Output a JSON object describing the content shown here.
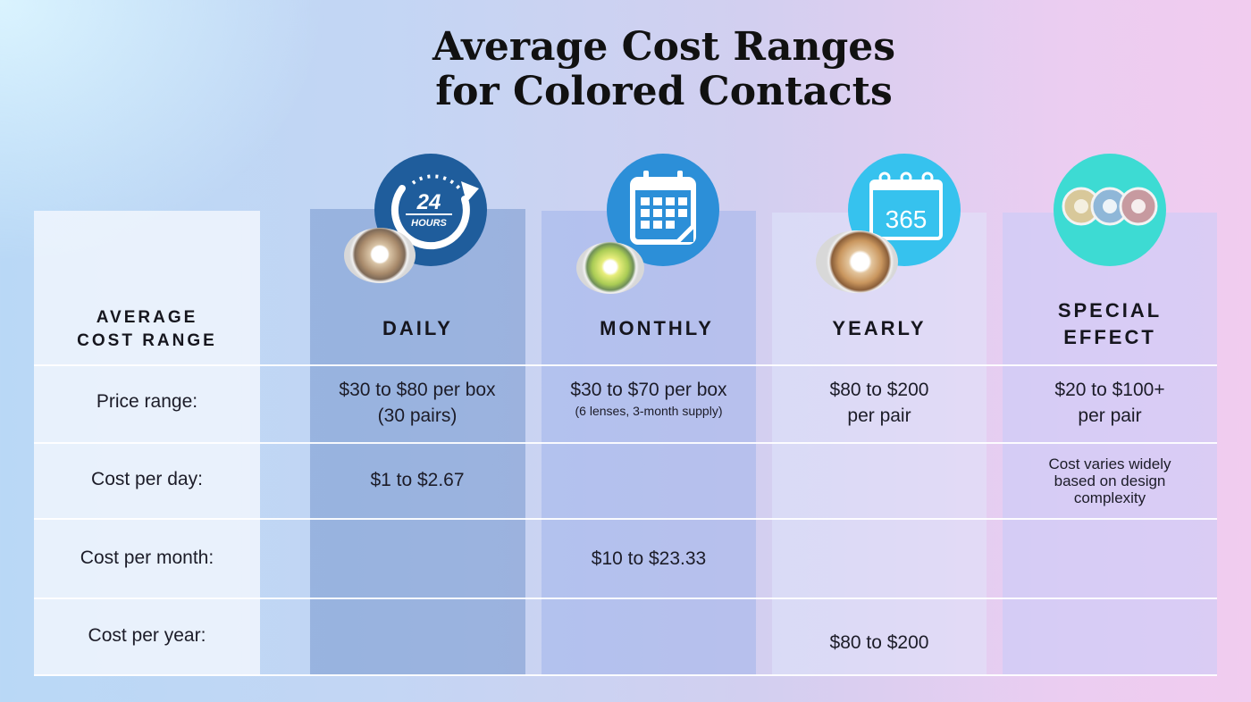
{
  "title_line1": "Average Cost Ranges",
  "title_line2": "for Colored Contacts",
  "chart_data": {
    "type": "table",
    "corner_header": [
      "AVERAGE",
      "COST RANGE"
    ],
    "columns": [
      "DAILY",
      "MONTHLY",
      "YEARLY",
      "SPECIAL",
      "EFFECT"
    ],
    "rows": [
      {
        "label": "Price range:",
        "daily": "$30 to $80 per box",
        "daily_sub": "(30 pairs)",
        "monthly": "$30 to $70 per box",
        "monthly_sub": "(6 lenses, 3-month supply)",
        "yearly": "$80 to $200",
        "yearly_sub": "per pair",
        "special": "$20 to $100+",
        "special_sub": "per pair"
      },
      {
        "label": "Cost per day:",
        "daily": "$1 to $2.67",
        "monthly": "",
        "yearly": "",
        "special": [
          "Cost varies widely",
          "based on design",
          "complexity"
        ]
      },
      {
        "label": "Cost per month:",
        "daily": "",
        "monthly": "$10 to $23.33",
        "yearly": "",
        "special": ""
      },
      {
        "label": "Cost per year:",
        "daily": "",
        "monthly": "",
        "yearly": "$80 to $200",
        "special": ""
      }
    ]
  },
  "icons": {
    "daily_number": "24",
    "daily_text": "HOURS",
    "yearly_number": "365",
    "daily": "24-hours-clock-icon",
    "monthly": "calendar-icon",
    "yearly": "365-calendar-icon",
    "special": "colored-lenses-icon"
  },
  "colors": {
    "daily_icon": "#1f5d9c",
    "monthly_icon": "#2c8fd8",
    "yearly_icon": "#36c2ee",
    "special_icon": "#3ddbd3"
  }
}
